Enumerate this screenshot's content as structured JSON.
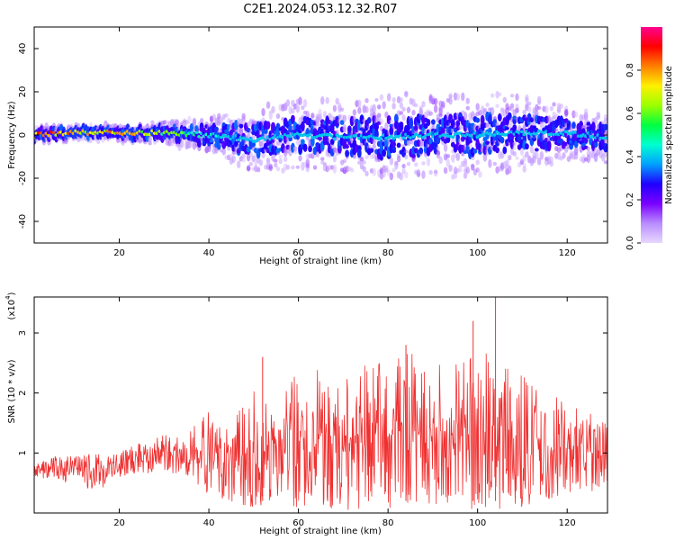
{
  "title": "C2E1.2024.053.12.32.R07",
  "chart_data": [
    {
      "type": "heatmap",
      "xlabel": "Height of straight line (km)",
      "ylabel": "Frequency (Hz)",
      "xlim": [
        1,
        129
      ],
      "ylim": [
        -50,
        50
      ],
      "xticks": [
        20,
        40,
        60,
        80,
        100,
        120
      ],
      "yticks": [
        -40,
        -20,
        0,
        20,
        40
      ],
      "colorbar": {
        "label": "Normalized spectral amplitude",
        "range": [
          0.0,
          1.0
        ],
        "ticks": [
          0.0,
          0.2,
          0.4,
          0.6,
          0.8
        ],
        "tick_labels": [
          "0.0",
          "0.2",
          "0.4",
          "0.6",
          "0.8"
        ],
        "colormap": [
          "#e8d8ff",
          "#b98cff",
          "#7a00ff",
          "#2000ff",
          "#00a0ff",
          "#00ffd0",
          "#00ff40",
          "#9aff00",
          "#fff000",
          "#ff8000",
          "#ff0000",
          "#ff0090"
        ]
      },
      "ridge_profile": {
        "x_km": [
          1,
          10,
          20,
          30,
          40,
          50,
          60,
          70,
          80,
          90,
          100,
          110,
          120,
          129
        ],
        "center_hz": [
          0,
          1,
          1,
          1,
          0,
          -2,
          0,
          -1,
          -1,
          0,
          0,
          1,
          1,
          -1
        ],
        "spread_hz": [
          2,
          2,
          2,
          3,
          5,
          9,
          10,
          10,
          12,
          12,
          12,
          11,
          8,
          7
        ],
        "peak_amplitude": [
          0.95,
          0.9,
          0.85,
          0.7,
          0.5,
          0.35,
          0.35,
          0.3,
          0.3,
          0.3,
          0.3,
          0.3,
          0.35,
          0.35
        ]
      }
    },
    {
      "type": "line",
      "xlabel": "Height of straight line (km)",
      "ylabel": "SNR (10 * v/v)",
      "scale_label": "(x10",
      "scale_exponent": "4",
      "xlim": [
        1,
        129
      ],
      "ylim": [
        0,
        3.6
      ],
      "xticks": [
        20,
        40,
        60,
        80,
        100,
        120
      ],
      "yticks": [
        1,
        2,
        3
      ],
      "color": "#f03030",
      "envelope": {
        "x_km": [
          1,
          5,
          10,
          15,
          20,
          25,
          30,
          35,
          40,
          45,
          50,
          55,
          60,
          65,
          70,
          75,
          80,
          85,
          90,
          95,
          100,
          105,
          110,
          115,
          120,
          125,
          129
        ],
        "upper": [
          0.8,
          0.95,
          0.95,
          1.0,
          1.0,
          1.25,
          1.3,
          1.5,
          1.75,
          1.9,
          2.1,
          2.2,
          2.3,
          2.45,
          2.3,
          2.5,
          2.5,
          2.8,
          2.5,
          2.6,
          2.8,
          2.5,
          2.3,
          2.0,
          1.9,
          1.7,
          1.6
        ],
        "lower": [
          0.6,
          0.55,
          0.5,
          0.35,
          0.6,
          0.65,
          0.7,
          0.6,
          0.3,
          0.15,
          0.1,
          0.1,
          0.1,
          0.05,
          0.05,
          0.05,
          0.05,
          0.05,
          0.05,
          0.05,
          0.05,
          0.05,
          0.1,
          0.2,
          0.25,
          0.3,
          0.4
        ]
      },
      "peaks": [
        {
          "x": 52,
          "y": 2.6
        },
        {
          "x": 84,
          "y": 2.8
        },
        {
          "x": 99,
          "y": 3.2
        },
        {
          "x": 104,
          "y": 3.6
        }
      ]
    }
  ]
}
